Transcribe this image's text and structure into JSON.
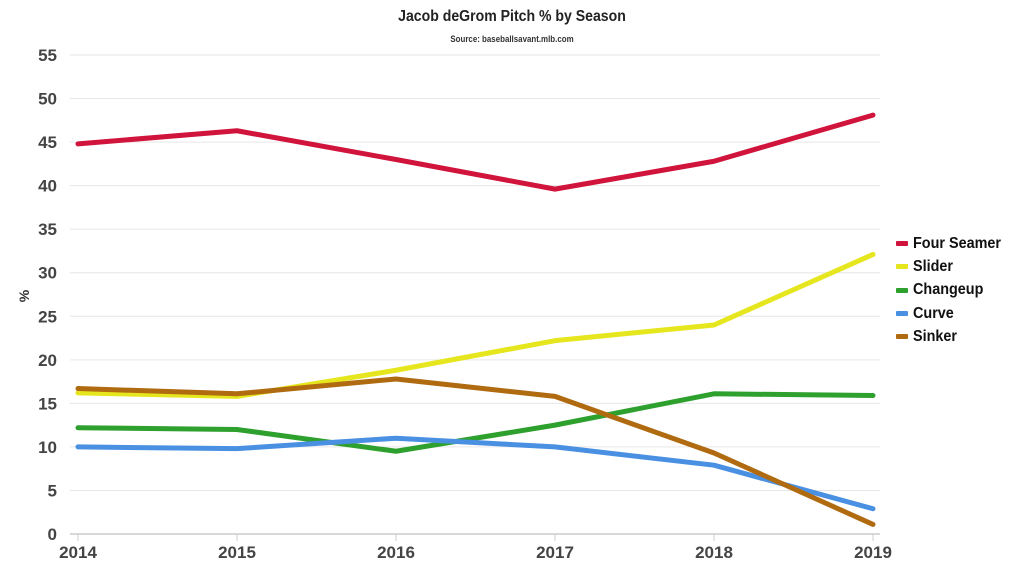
{
  "chart_data": {
    "type": "line",
    "title": "Jacob deGrom Pitch % by Season",
    "subtitle": "Source: baseballsavant.mlb.com",
    "xlabel": "",
    "ylabel": "%",
    "x": [
      "2014",
      "2015",
      "2016",
      "2017",
      "2018",
      "2019"
    ],
    "ylim": [
      0,
      55
    ],
    "yticks": [
      "0",
      "5",
      "10",
      "15",
      "20",
      "25",
      "30",
      "35",
      "40",
      "45",
      "50",
      "55"
    ],
    "grid": true,
    "legend_position": "right",
    "series": [
      {
        "name": "Four Seamer",
        "color": "#d0143c",
        "values": [
          44.8,
          46.3,
          43.0,
          39.6,
          42.8,
          48.1
        ]
      },
      {
        "name": "Slider",
        "color": "#e6e61e",
        "values": [
          16.2,
          15.8,
          18.8,
          22.2,
          24.0,
          32.1
        ]
      },
      {
        "name": "Changeup",
        "color": "#2ea02e",
        "values": [
          12.2,
          12.0,
          9.5,
          12.5,
          16.1,
          15.9
        ]
      },
      {
        "name": "Curve",
        "color": "#4a90e2",
        "values": [
          10.0,
          9.8,
          11.0,
          10.0,
          7.9,
          2.9
        ]
      },
      {
        "name": "Sinker",
        "color": "#b06a10",
        "values": [
          16.7,
          16.1,
          17.8,
          15.8,
          9.3,
          1.1
        ]
      }
    ]
  }
}
